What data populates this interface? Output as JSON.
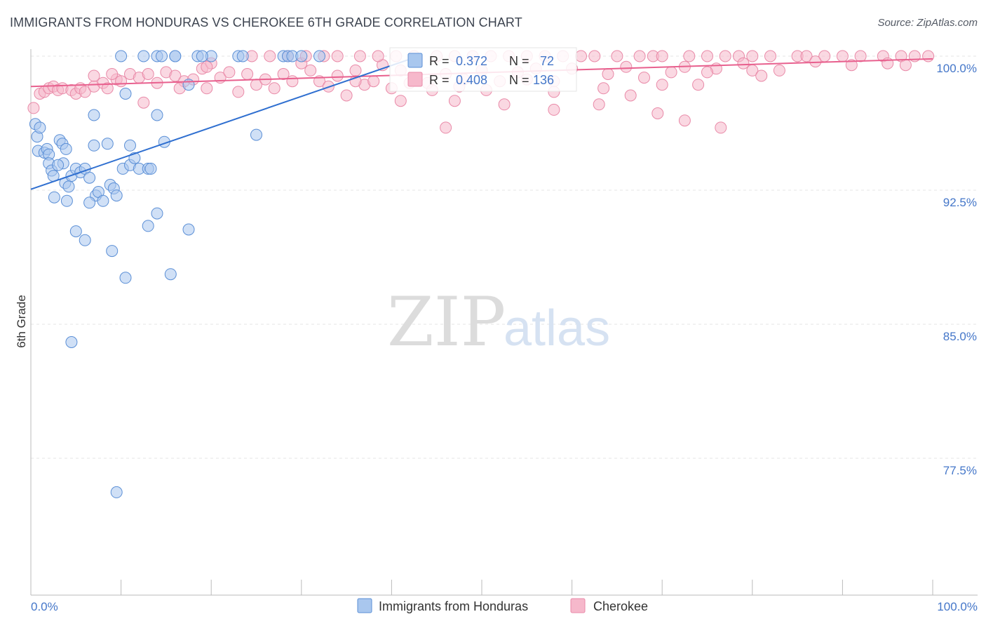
{
  "title": "IMMIGRANTS FROM HONDURAS VS CHEROKEE 6TH GRADE CORRELATION CHART",
  "source": "Source: ZipAtlas.com",
  "watermark": {
    "zip": "ZIP",
    "atlas": "atlas"
  },
  "colors": {
    "blue_fill": "#a9c7ee",
    "blue_stroke": "#5b8fd6",
    "blue_line": "#2f6fd0",
    "pink_fill": "#f6b8cb",
    "pink_stroke": "#e98aa8",
    "pink_line": "#e8608e",
    "axis_text": "#4577c9"
  },
  "stats": {
    "r_label": "R =",
    "n_label": "N =",
    "blue": {
      "r": "0.372",
      "n": "72"
    },
    "pink": {
      "r": "0.408",
      "n": "136"
    }
  },
  "legend": {
    "blue": "Immigrants from Honduras",
    "pink": "Cherokee"
  },
  "chart_data": {
    "type": "scatter",
    "title": "IMMIGRANTS FROM HONDURAS VS CHEROKEE 6TH GRADE CORRELATION CHART",
    "xlabel": "",
    "ylabel": "6th Grade",
    "xlim": [
      0,
      100
    ],
    "ylim": [
      70.5,
      101.0
    ],
    "x_tick_labels": [
      "0.0%",
      "100.0%"
    ],
    "y_ticks": [
      {
        "value": 100.0,
        "label": "100.0%"
      },
      {
        "value": 92.5,
        "label": "92.5%"
      },
      {
        "value": 85.0,
        "label": "85.0%"
      },
      {
        "value": 77.5,
        "label": "77.5%"
      }
    ],
    "series": [
      {
        "name": "Immigrants from Honduras",
        "color": "blue",
        "trendline": {
          "x": [
            0,
            43.0
          ],
          "y": [
            92.55,
            100.0
          ]
        },
        "points": [
          [
            0.5,
            96.2
          ],
          [
            0.7,
            95.5
          ],
          [
            1.0,
            96.0
          ],
          [
            0.8,
            94.7
          ],
          [
            1.5,
            94.6
          ],
          [
            1.8,
            94.8
          ],
          [
            2.0,
            94.5
          ],
          [
            3.2,
            95.3
          ],
          [
            3.5,
            95.1
          ],
          [
            3.6,
            94.0
          ],
          [
            3.9,
            94.8
          ],
          [
            2.0,
            94.0
          ],
          [
            2.3,
            93.6
          ],
          [
            2.5,
            93.3
          ],
          [
            3.0,
            93.9
          ],
          [
            3.8,
            92.9
          ],
          [
            4.2,
            92.7
          ],
          [
            4.5,
            93.3
          ],
          [
            5.0,
            93.7
          ],
          [
            5.5,
            93.5
          ],
          [
            6.0,
            93.7
          ],
          [
            2.6,
            92.1
          ],
          [
            6.5,
            93.2
          ],
          [
            7.2,
            92.2
          ],
          [
            7.5,
            92.4
          ],
          [
            8.0,
            91.9
          ],
          [
            8.8,
            92.8
          ],
          [
            9.2,
            92.6
          ],
          [
            9.5,
            92.2
          ],
          [
            10.2,
            93.7
          ],
          [
            11.0,
            93.9
          ],
          [
            11.5,
            94.3
          ],
          [
            12.0,
            93.7
          ],
          [
            13.0,
            93.7
          ],
          [
            13.3,
            93.7
          ],
          [
            4.0,
            91.9
          ],
          [
            6.5,
            91.8
          ],
          [
            7.0,
            95.0
          ],
          [
            8.5,
            95.1
          ],
          [
            11.0,
            95.0
          ],
          [
            14.8,
            95.2
          ],
          [
            7.0,
            96.7
          ],
          [
            14.0,
            96.7
          ],
          [
            10.5,
            97.9
          ],
          [
            17.5,
            98.4
          ],
          [
            25.0,
            95.6
          ],
          [
            10.0,
            100.0
          ],
          [
            14.0,
            100.0
          ],
          [
            16.0,
            100.0
          ],
          [
            14.5,
            100.0
          ],
          [
            18.5,
            100.0
          ],
          [
            20.0,
            100.0
          ],
          [
            23.0,
            100.0
          ],
          [
            23.5,
            100.0
          ],
          [
            28.0,
            100.0
          ],
          [
            28.5,
            100.0
          ],
          [
            29.0,
            100.0
          ],
          [
            30.0,
            100.0
          ],
          [
            32.0,
            100.0
          ],
          [
            16.0,
            100.0
          ],
          [
            5.0,
            90.2
          ],
          [
            6.0,
            89.7
          ],
          [
            9.0,
            89.1
          ],
          [
            10.5,
            87.6
          ],
          [
            15.5,
            87.8
          ],
          [
            13.0,
            90.5
          ],
          [
            14.0,
            91.2
          ],
          [
            17.5,
            90.3
          ],
          [
            4.5,
            84.0
          ],
          [
            9.5,
            75.6
          ],
          [
            12.5,
            100.0
          ],
          [
            19.0,
            100.0
          ]
        ]
      },
      {
        "name": "Cherokee",
        "color": "pink",
        "trendline": {
          "x": [
            0,
            100
          ],
          "y": [
            98.3,
            99.85
          ]
        },
        "points": [
          [
            0.3,
            97.1
          ],
          [
            1.0,
            97.9
          ],
          [
            1.5,
            98.0
          ],
          [
            2.0,
            98.2
          ],
          [
            2.5,
            98.3
          ],
          [
            3.0,
            98.1
          ],
          [
            3.5,
            98.2
          ],
          [
            4.5,
            98.1
          ],
          [
            5.0,
            97.9
          ],
          [
            5.5,
            98.2
          ],
          [
            6.0,
            98.0
          ],
          [
            7.0,
            98.3
          ],
          [
            8.0,
            98.5
          ],
          [
            8.5,
            98.2
          ],
          [
            9.5,
            98.7
          ],
          [
            10.0,
            98.6
          ],
          [
            11.0,
            99.0
          ],
          [
            12.0,
            98.8
          ],
          [
            13.0,
            99.0
          ],
          [
            14.0,
            98.5
          ],
          [
            15.0,
            99.1
          ],
          [
            16.0,
            98.9
          ],
          [
            17.0,
            98.6
          ],
          [
            18.0,
            98.7
          ],
          [
            19.0,
            99.3
          ],
          [
            19.5,
            98.2
          ],
          [
            20.0,
            99.6
          ],
          [
            21.0,
            98.8
          ],
          [
            22.0,
            99.1
          ],
          [
            23.0,
            98.0
          ],
          [
            24.0,
            99.0
          ],
          [
            25.0,
            98.4
          ],
          [
            26.0,
            98.7
          ],
          [
            27.0,
            98.2
          ],
          [
            28.0,
            99.0
          ],
          [
            29.0,
            98.6
          ],
          [
            30.0,
            99.6
          ],
          [
            31.0,
            99.2
          ],
          [
            32.0,
            98.6
          ],
          [
            33.0,
            98.3
          ],
          [
            34.0,
            98.9
          ],
          [
            35.0,
            97.8
          ],
          [
            36.0,
            99.2
          ],
          [
            37.0,
            98.4
          ],
          [
            38.0,
            98.6
          ],
          [
            39.0,
            99.5
          ],
          [
            40.0,
            98.2
          ],
          [
            41.0,
            99.2
          ],
          [
            42.0,
            98.5
          ],
          [
            7.0,
            98.9
          ],
          [
            9.0,
            99.0
          ],
          [
            12.5,
            97.4
          ],
          [
            16.5,
            98.2
          ],
          [
            19.5,
            99.4
          ],
          [
            24.5,
            100.0
          ],
          [
            26.5,
            100.0
          ],
          [
            28.5,
            100.0
          ],
          [
            30.5,
            100.0
          ],
          [
            32.5,
            100.0
          ],
          [
            34.0,
            100.0
          ],
          [
            36.5,
            100.0
          ],
          [
            38.5,
            100.0
          ],
          [
            40.5,
            100.0
          ],
          [
            42.5,
            100.0
          ],
          [
            45.0,
            100.0
          ],
          [
            47.0,
            100.0
          ],
          [
            49.0,
            100.0
          ],
          [
            51.0,
            100.0
          ],
          [
            53.0,
            100.0
          ],
          [
            55.0,
            100.0
          ],
          [
            57.0,
            100.0
          ],
          [
            59.0,
            100.0
          ],
          [
            61.0,
            100.0
          ],
          [
            62.5,
            100.0
          ],
          [
            65.0,
            100.0
          ],
          [
            67.5,
            100.0
          ],
          [
            69.0,
            100.0
          ],
          [
            70.0,
            100.0
          ],
          [
            73.0,
            100.0
          ],
          [
            75.0,
            100.0
          ],
          [
            77.0,
            100.0
          ],
          [
            78.5,
            100.0
          ],
          [
            80.0,
            100.0
          ],
          [
            82.0,
            100.0
          ],
          [
            85.0,
            100.0
          ],
          [
            86.0,
            100.0
          ],
          [
            88.0,
            100.0
          ],
          [
            90.0,
            100.0
          ],
          [
            92.0,
            100.0
          ],
          [
            94.5,
            100.0
          ],
          [
            96.5,
            100.0
          ],
          [
            98.0,
            100.0
          ],
          [
            99.5,
            100.0
          ],
          [
            44.0,
            98.5
          ],
          [
            46.0,
            99.0
          ],
          [
            48.0,
            98.7
          ],
          [
            50.0,
            99.2
          ],
          [
            52.0,
            98.6
          ],
          [
            54.0,
            99.1
          ],
          [
            56.0,
            99.3
          ],
          [
            58.0,
            98.6
          ],
          [
            60.0,
            99.3
          ],
          [
            64.0,
            99.0
          ],
          [
            66.0,
            99.4
          ],
          [
            68.0,
            98.8
          ],
          [
            71.0,
            99.1
          ],
          [
            72.5,
            99.4
          ],
          [
            76.0,
            99.3
          ],
          [
            79.0,
            99.6
          ],
          [
            83.0,
            99.2
          ],
          [
            87.0,
            99.7
          ],
          [
            91.0,
            99.5
          ],
          [
            95.0,
            99.6
          ],
          [
            97.0,
            99.5
          ],
          [
            47.0,
            97.5
          ],
          [
            52.5,
            97.3
          ],
          [
            63.0,
            97.3
          ],
          [
            58.0,
            97.0
          ],
          [
            66.5,
            97.8
          ],
          [
            69.5,
            96.8
          ],
          [
            72.5,
            96.4
          ],
          [
            46.0,
            96.0
          ],
          [
            76.5,
            96.0
          ],
          [
            58.0,
            98.0
          ],
          [
            63.5,
            98.2
          ],
          [
            75.0,
            99.1
          ],
          [
            80.0,
            99.2
          ],
          [
            81.0,
            98.9
          ],
          [
            36.0,
            98.6
          ],
          [
            41.0,
            97.5
          ],
          [
            44.5,
            98.1
          ],
          [
            47.5,
            98.3
          ],
          [
            50.5,
            98.1
          ],
          [
            70.0,
            98.4
          ],
          [
            74.0,
            98.4
          ],
          [
            55.0,
            98.7
          ]
        ]
      }
    ]
  }
}
